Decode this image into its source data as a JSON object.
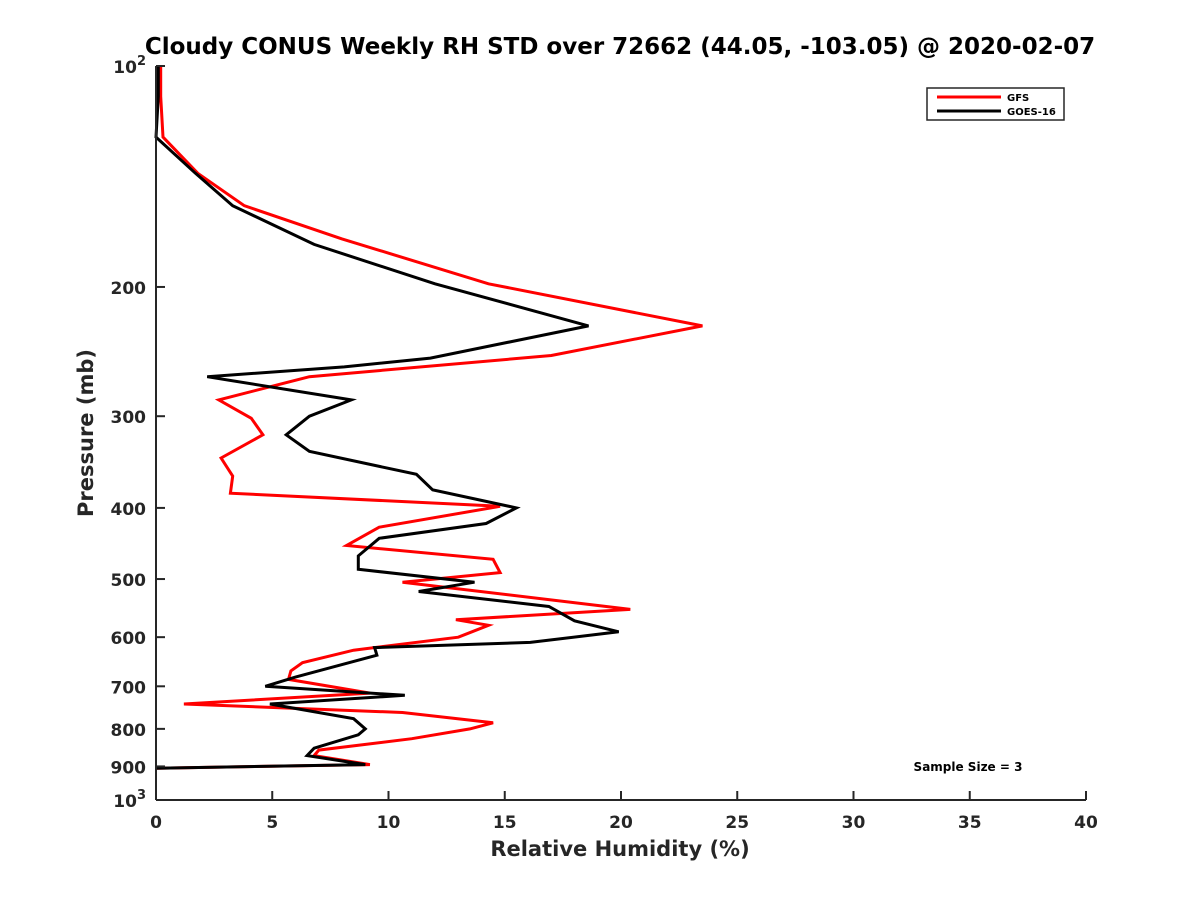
{
  "chart_data": {
    "type": "line",
    "title": "Cloudy CONUS Weekly RH STD over 72662 (44.05, -103.05) @ 2020-02-07",
    "xlabel": "Relative Humidity (%)",
    "ylabel": "Pressure (mb)",
    "xlim": [
      0,
      40
    ],
    "ylim": [
      100,
      1000
    ],
    "y_scale": "log",
    "y_reversed": true,
    "grid": false,
    "legend_position": "top-right",
    "x_ticks": [
      0,
      5,
      10,
      15,
      20,
      25,
      30,
      35,
      40
    ],
    "x_tick_labels": [
      "0",
      "5",
      "10",
      "15",
      "20",
      "25",
      "30",
      "35",
      "40"
    ],
    "y_ticks": [
      100,
      200,
      300,
      400,
      500,
      600,
      700,
      800,
      900,
      1000
    ],
    "y_tick_labels": [
      {
        "base": "10",
        "exp": "2"
      },
      {
        "base": "200",
        "exp": ""
      },
      {
        "base": "300",
        "exp": ""
      },
      {
        "base": "400",
        "exp": ""
      },
      {
        "base": "500",
        "exp": ""
      },
      {
        "base": "600",
        "exp": ""
      },
      {
        "base": "700",
        "exp": ""
      },
      {
        "base": "800",
        "exp": ""
      },
      {
        "base": "900",
        "exp": ""
      },
      {
        "base": "10",
        "exp": "3"
      }
    ],
    "annotation": "Sample Size = 3",
    "series": [
      {
        "name": "GFS",
        "color": "#ff0000",
        "points": [
          [
            0.2,
            100
          ],
          [
            0.2,
            110
          ],
          [
            0.3,
            125
          ],
          [
            1.8,
            140
          ],
          [
            3.8,
            155
          ],
          [
            8.0,
            172
          ],
          [
            14.3,
            198
          ],
          [
            23.5,
            226
          ],
          [
            17.0,
            248
          ],
          [
            6.6,
            265
          ],
          [
            2.7,
            285
          ],
          [
            4.1,
            302
          ],
          [
            4.6,
            318
          ],
          [
            2.8,
            342
          ],
          [
            3.3,
            362
          ],
          [
            3.2,
            382
          ],
          [
            14.8,
            398
          ],
          [
            9.6,
            425
          ],
          [
            8.2,
            450
          ],
          [
            14.5,
            470
          ],
          [
            14.8,
            490
          ],
          [
            10.6,
            505
          ],
          [
            20.4,
            550
          ],
          [
            12.9,
            568
          ],
          [
            14.3,
            578
          ],
          [
            13.0,
            600
          ],
          [
            8.5,
            625
          ],
          [
            6.3,
            650
          ],
          [
            5.8,
            667
          ],
          [
            5.7,
            685
          ],
          [
            9.2,
            715
          ],
          [
            1.2,
            740
          ],
          [
            10.6,
            760
          ],
          [
            14.5,
            785
          ],
          [
            13.5,
            800
          ],
          [
            11.0,
            825
          ],
          [
            7.0,
            855
          ],
          [
            6.8,
            870
          ],
          [
            9.2,
            895
          ],
          [
            0.0,
            905
          ]
        ]
      },
      {
        "name": "GOES-16",
        "color": "#000000",
        "points": [
          [
            0.1,
            100
          ],
          [
            0.1,
            110
          ],
          [
            0.0,
            125
          ],
          [
            1.7,
            140
          ],
          [
            3.3,
            155
          ],
          [
            6.8,
            175
          ],
          [
            12.0,
            198
          ],
          [
            18.6,
            226
          ],
          [
            11.8,
            250
          ],
          [
            8.1,
            257
          ],
          [
            2.2,
            265
          ],
          [
            8.4,
            285
          ],
          [
            6.6,
            300
          ],
          [
            5.6,
            318
          ],
          [
            6.6,
            335
          ],
          [
            11.2,
            360
          ],
          [
            11.9,
            378
          ],
          [
            15.5,
            400
          ],
          [
            14.2,
            420
          ],
          [
            9.6,
            440
          ],
          [
            8.7,
            465
          ],
          [
            8.7,
            485
          ],
          [
            13.7,
            505
          ],
          [
            11.3,
            520
          ],
          [
            16.9,
            545
          ],
          [
            18.0,
            570
          ],
          [
            19.9,
            590
          ],
          [
            16.1,
            610
          ],
          [
            9.4,
            620
          ],
          [
            9.5,
            635
          ],
          [
            8.3,
            650
          ],
          [
            6.0,
            680
          ],
          [
            4.7,
            700
          ],
          [
            10.7,
            720
          ],
          [
            4.9,
            740
          ],
          [
            8.5,
            775
          ],
          [
            9.0,
            800
          ],
          [
            8.7,
            815
          ],
          [
            6.8,
            850
          ],
          [
            6.5,
            870
          ],
          [
            9.0,
            895
          ],
          [
            0.0,
            905
          ]
        ]
      }
    ]
  }
}
